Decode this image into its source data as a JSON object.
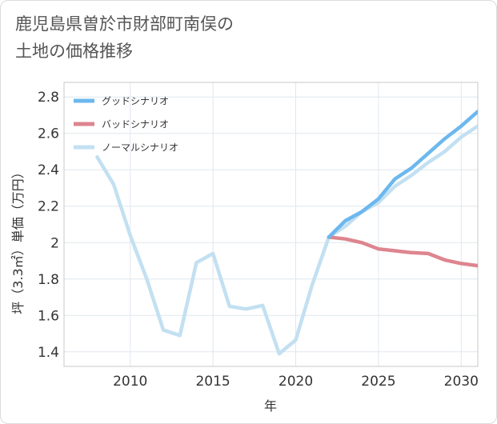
{
  "title_lines": [
    "鹿児島県曽於市財部町南俣の",
    "土地の価格推移"
  ],
  "chart_data": {
    "type": "line",
    "title": "鹿児島県曽於市財部町南俣の土地の価格推移",
    "xlabel": "年",
    "ylabel": "坪（3.3㎡）単価（万円）",
    "xlim": [
      2006,
      2031
    ],
    "ylim": [
      1.32,
      2.88
    ],
    "xticks": [
      2010,
      2015,
      2020,
      2025,
      2030
    ],
    "xtick_labels": [
      "2010",
      "2015",
      "2020",
      "2025",
      "2030"
    ],
    "yticks": [
      1.4,
      1.6,
      1.8,
      2.0,
      2.2,
      2.4,
      2.6,
      2.8
    ],
    "ytick_labels": [
      "1.4",
      "1.6",
      "1.8",
      "2",
      "2.2",
      "2.4",
      "2.6",
      "2.8"
    ],
    "grid": true,
    "legend_position": "top-left",
    "series": [
      {
        "name": "グッドシナリオ",
        "color": "#6cb8ee",
        "x": [
          2022,
          2023,
          2024,
          2025,
          2026,
          2027,
          2028,
          2029,
          2030,
          2031
        ],
        "y": [
          2.03,
          2.12,
          2.17,
          2.24,
          2.35,
          2.41,
          2.49,
          2.57,
          2.64,
          2.72
        ]
      },
      {
        "name": "バッドシナリオ",
        "color": "#de858f",
        "x": [
          2022,
          2023,
          2024,
          2025,
          2026,
          2027,
          2028,
          2029,
          2030,
          2031
        ],
        "y": [
          2.03,
          2.02,
          2.0,
          1.965,
          1.955,
          1.945,
          1.94,
          1.905,
          1.885,
          1.873
        ]
      },
      {
        "name": "ノーマルシナリオ",
        "color": "#c2e0f1",
        "x": [
          2008,
          2009,
          2010,
          2011,
          2012,
          2013,
          2014,
          2015,
          2016,
          2017,
          2018,
          2019,
          2020,
          2021,
          2022,
          2023,
          2024,
          2025,
          2026,
          2027,
          2028,
          2029,
          2030,
          2031
        ],
        "y": [
          2.47,
          2.32,
          2.04,
          1.8,
          1.52,
          1.49,
          1.89,
          1.94,
          1.65,
          1.635,
          1.655,
          1.39,
          1.465,
          1.77,
          2.03,
          2.09,
          2.17,
          2.22,
          2.31,
          2.37,
          2.44,
          2.5,
          2.58,
          2.64
        ]
      }
    ]
  }
}
